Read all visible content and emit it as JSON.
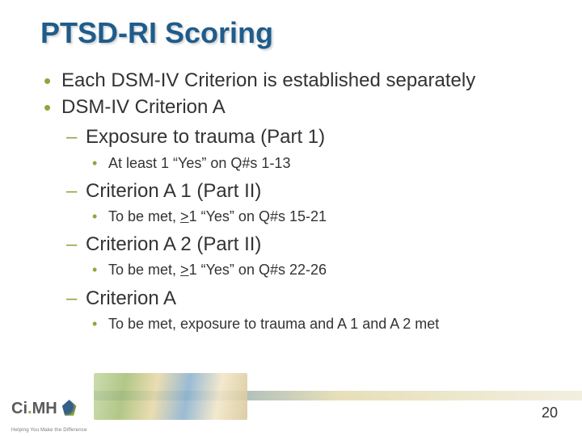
{
  "title": "PTSD-RI Scoring",
  "colors": {
    "title": "#1f5c8b",
    "bullet": "#8fa63c",
    "text": "#333333",
    "background": "#ffffff"
  },
  "font": {
    "title_size": 36,
    "l1_size": 24,
    "l2_size": 24,
    "l3_size": 18
  },
  "bullets": [
    {
      "level": 1,
      "text": "Each DSM-IV Criterion is established separately"
    },
    {
      "level": 1,
      "text": "DSM-IV Criterion A"
    },
    {
      "level": 2,
      "text": "Exposure to trauma (Part 1)"
    },
    {
      "level": 3,
      "text": "At least 1 “Yes” on Q#s 1-13"
    },
    {
      "level": 2,
      "text": "Criterion A 1 (Part II)"
    },
    {
      "level": 3,
      "prefix": "To be met, ",
      "u": ">",
      "suffix": "1 “Yes” on Q#s 15-21"
    },
    {
      "level": 2,
      "text": "Criterion A 2 (Part II)"
    },
    {
      "level": 3,
      "prefix": "To be met, ",
      "u": ">",
      "suffix": "1 “Yes” on Q#s 22-26"
    },
    {
      "level": 2,
      "text": "Criterion A"
    },
    {
      "level": 3,
      "text": "To be met, exposure to trauma and A 1 and A 2 met"
    }
  ],
  "logo": {
    "ci": "Ci",
    "dot": ".",
    "mh": "MH",
    "tagline": "Helping You Make the Difference"
  },
  "page_number": "20"
}
